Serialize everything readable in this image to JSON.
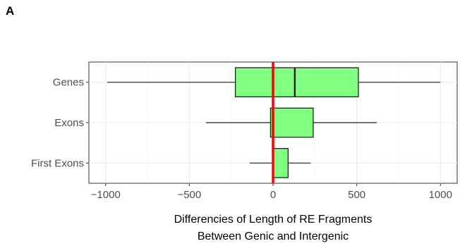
{
  "panel_label": "A",
  "chart_data": {
    "type": "boxplot",
    "orientation": "horizontal",
    "categories": [
      "Genes",
      "Exons",
      "First Exons"
    ],
    "boxes": [
      {
        "category": "Genes",
        "whisker_low": -990,
        "q1": -225,
        "median": 130,
        "q3": 510,
        "whisker_high": 1000
      },
      {
        "category": "Exons",
        "whisker_low": -400,
        "q1": -15,
        "median": 0,
        "q3": 240,
        "whisker_high": 620
      },
      {
        "category": "First Exons",
        "whisker_low": -140,
        "q1": 0,
        "median": 0,
        "q3": 90,
        "whisker_high": 225
      }
    ],
    "reference_line": {
      "x": 0,
      "color": "#ff0000"
    },
    "box_fill": "#80ff80",
    "xlim": [
      -1100,
      1100
    ],
    "x_ticks": [
      -1000,
      -500,
      0,
      500,
      1000
    ],
    "x_tick_labels": [
      "−1000",
      "−500",
      "0",
      "500",
      "1000"
    ],
    "xlabel_lines": [
      "Differencies of Length of RE Fragments",
      "Between Genic and Intergenic"
    ],
    "ylabel": "",
    "grid": true
  }
}
